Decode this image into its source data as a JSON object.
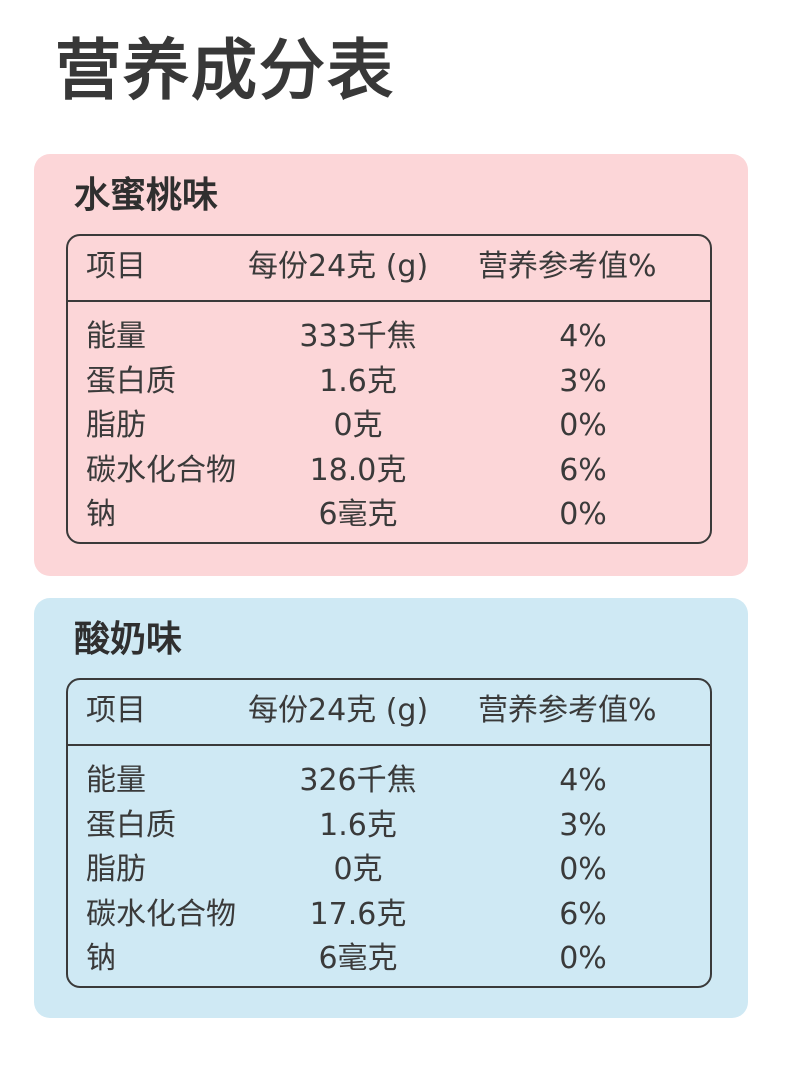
{
  "page_title": "营养成分表",
  "tables": [
    {
      "flavor": "水蜜桃味",
      "headers": {
        "item": "项目",
        "amount": "每份24克 (g)",
        "nrv": "营养参考值%"
      },
      "rows": [
        {
          "item": "能量",
          "amount": "333千焦",
          "nrv": "4%"
        },
        {
          "item": "蛋白质",
          "amount": "1.6克",
          "nrv": "3%"
        },
        {
          "item": "脂肪",
          "amount": "0克",
          "nrv": "0%"
        },
        {
          "item": "碳水化合物",
          "amount": "18.0克",
          "nrv": "6%"
        },
        {
          "item": "钠",
          "amount": "6毫克",
          "nrv": "0%"
        }
      ]
    },
    {
      "flavor": "酸奶味",
      "headers": {
        "item": "项目",
        "amount": "每份24克 (g)",
        "nrv": "营养参考值%"
      },
      "rows": [
        {
          "item": "能量",
          "amount": "326千焦",
          "nrv": "4%"
        },
        {
          "item": "蛋白质",
          "amount": "1.6克",
          "nrv": "3%"
        },
        {
          "item": "脂肪",
          "amount": "0克",
          "nrv": "0%"
        },
        {
          "item": "碳水化合物",
          "amount": "17.6克",
          "nrv": "6%"
        },
        {
          "item": "钠",
          "amount": "6毫克",
          "nrv": "0%"
        }
      ]
    }
  ],
  "colors": {
    "peach_panel": "#fcd6d8",
    "yogurt_panel": "#cfe9f4",
    "text": "#3a3a3a"
  }
}
